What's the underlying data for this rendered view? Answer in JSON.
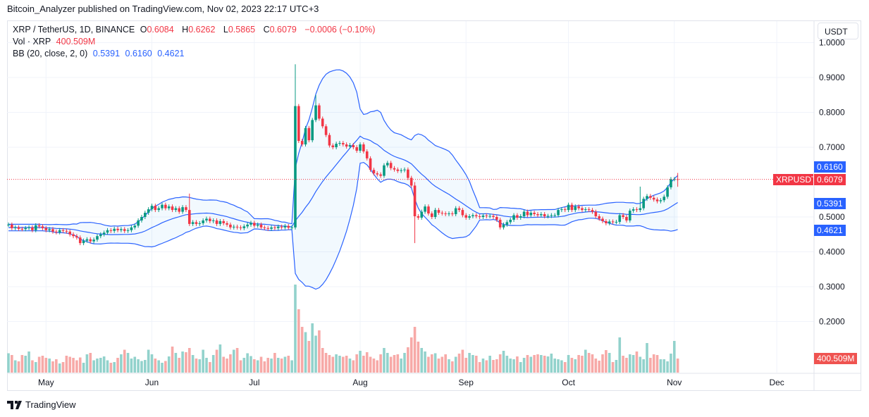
{
  "header": {
    "published": "Bitcoin_Analyzer published on TradingView.com, Nov 02, 2023 22:17 UTC+3"
  },
  "legend": {
    "symbol": "XRP / TetherUS, 1D, BINANCE",
    "o_label": "O",
    "o": "0.6084",
    "h_label": "H",
    "h": "0.6262",
    "l_label": "L",
    "l": "0.5865",
    "c_label": "C",
    "c": "0.6079",
    "change": "−0.0006 (−0.10%)",
    "vol_label": "Vol · XRP",
    "vol": "400.509M",
    "bb_label": "BB (20, close, 2, 0)",
    "bb_basis": "0.5391",
    "bb_upper": "0.6160",
    "bb_lower": "0.4621"
  },
  "price_axis": {
    "currency_button": "USDT",
    "ticks": [
      "1.0000",
      "0.9000",
      "0.8000",
      "0.7000",
      "0.5000",
      "0.4000",
      "0.3000",
      "0.2000"
    ],
    "last_symbol_tag": "XRPUSDT",
    "last_price_tag": "0.6079",
    "bb_upper_tag": "0.6160",
    "bb_basis_tag": "0.5391",
    "bb_lower_tag": "0.4621",
    "volume_tag": "400.509M"
  },
  "footer": {
    "brand": "TradingView"
  },
  "colors": {
    "up": "#089981",
    "down": "#f23645",
    "vol_up": "#92d2cc",
    "vol_down": "#f7a9a7",
    "bb": "#2962ff",
    "bb_fill": "rgba(33,150,243,0.06)",
    "grid": "#f0f3fa"
  },
  "chart_data": {
    "type": "candlestick",
    "symbol": "XRPUSDT",
    "interval": "1D",
    "ylim": [
      0.14,
      1.02
    ],
    "yticks": [
      1.0,
      0.9,
      0.8,
      0.7,
      0.5,
      0.4,
      0.3,
      0.2
    ],
    "xticks": [
      {
        "label": "May",
        "date": "2023-05-01"
      },
      {
        "label": "Jun",
        "date": "2023-06-01"
      },
      {
        "label": "Jul",
        "date": "2023-07-01"
      },
      {
        "label": "Aug",
        "date": "2023-08-01"
      },
      {
        "label": "Sep",
        "date": "2023-09-01"
      },
      {
        "label": "Oct",
        "date": "2023-10-01"
      },
      {
        "label": "Nov",
        "date": "2023-11-01"
      },
      {
        "label": "Dec",
        "date": "2023-12-01"
      }
    ],
    "grid": true,
    "last_price": 0.6079,
    "bollinger": {
      "length": 20,
      "mult": 2,
      "basis": 0.5391,
      "upper": 0.616,
      "lower": 0.4621
    },
    "months": [
      {
        "month": "2023-04",
        "first_day": 20,
        "close": [
          0.478,
          0.468,
          0.47,
          0.466,
          0.465,
          0.468,
          0.47,
          0.462,
          0.476,
          0.473,
          0.468
        ],
        "volume_m": [
          550,
          500,
          350,
          320,
          500,
          480,
          600,
          350,
          300,
          450,
          480
        ]
      },
      {
        "month": "2023-05",
        "first_day": 1,
        "close": [
          0.462,
          0.465,
          0.458,
          0.456,
          0.462,
          0.46,
          0.458,
          0.45,
          0.445,
          0.441,
          0.425,
          0.432,
          0.436,
          0.43,
          0.435,
          0.445,
          0.45,
          0.455,
          0.462,
          0.46,
          0.466,
          0.462,
          0.465,
          0.46,
          0.462,
          0.47,
          0.475,
          0.49,
          0.5,
          0.512,
          0.522
        ],
        "volume_m": [
          420,
          400,
          320,
          380,
          260,
          300,
          480,
          450,
          420,
          350,
          430,
          280,
          520,
          560,
          350,
          400,
          420,
          460,
          350,
          280,
          300,
          420,
          520,
          650,
          560,
          400,
          450,
          380,
          330,
          360,
          650
        ]
      },
      {
        "month": "2023-06",
        "first_day": 1,
        "close": [
          0.532,
          0.52,
          0.525,
          0.535,
          0.525,
          0.53,
          0.52,
          0.525,
          0.515,
          0.528,
          0.52,
          0.48,
          0.485,
          0.48,
          0.482,
          0.49,
          0.495,
          0.488,
          0.49,
          0.48,
          0.488,
          0.482,
          0.478,
          0.47,
          0.472,
          0.47,
          0.468,
          0.473,
          0.478,
          0.483
        ],
        "volume_m": [
          520,
          400,
          350,
          280,
          330,
          460,
          740,
          560,
          420,
          600,
          580,
          700,
          500,
          400,
          380,
          650,
          420,
          300,
          500,
          650,
          800,
          450,
          400,
          520,
          650,
          700,
          350,
          420,
          550,
          470
        ]
      },
      {
        "month": "2023-07",
        "first_day": 1,
        "close": [
          0.475,
          0.478,
          0.47,
          0.468,
          0.466,
          0.47,
          0.468,
          0.472,
          0.47,
          0.474,
          0.469,
          0.47,
          0.818,
          0.718,
          0.708,
          0.755,
          0.72,
          0.778,
          0.82,
          0.782,
          0.76,
          0.735,
          0.705,
          0.7,
          0.71,
          0.712,
          0.708,
          0.702,
          0.706,
          0.7,
          0.69
        ],
        "volume_m": [
          380,
          350,
          450,
          320,
          420,
          400,
          560,
          420,
          400,
          450,
          480,
          350,
          2500,
          1800,
          1300,
          1150,
          900,
          1400,
          1050,
          1200,
          700,
          560,
          500,
          450,
          520,
          480,
          450,
          480,
          400,
          350,
          520
        ]
      },
      {
        "month": "2023-08",
        "first_day": 1,
        "close": [
          0.708,
          0.688,
          0.668,
          0.635,
          0.625,
          0.622,
          0.618,
          0.648,
          0.655,
          0.64,
          0.636,
          0.632,
          0.634,
          0.636,
          0.612,
          0.59,
          0.502,
          0.498,
          0.515,
          0.53,
          0.51,
          0.5,
          0.52,
          0.512,
          0.51,
          0.508,
          0.51,
          0.508,
          0.525,
          0.52,
          0.505
        ],
        "volume_m": [
          620,
          480,
          580,
          450,
          400,
          350,
          520,
          700,
          560,
          450,
          500,
          520,
          400,
          560,
          720,
          1000,
          1300,
          880,
          700,
          600,
          450,
          520,
          550,
          400,
          450,
          520,
          380,
          320,
          450,
          540,
          650
        ]
      },
      {
        "month": "2023-09",
        "first_day": 1,
        "close": [
          0.498,
          0.502,
          0.505,
          0.502,
          0.5,
          0.504,
          0.502,
          0.503,
          0.5,
          0.492,
          0.47,
          0.478,
          0.485,
          0.492,
          0.505,
          0.498,
          0.502,
          0.515,
          0.505,
          0.512,
          0.508,
          0.505,
          0.508,
          0.502,
          0.503,
          0.505,
          0.505,
          0.52,
          0.522,
          0.52
        ],
        "volume_m": [
          420,
          560,
          500,
          480,
          300,
          400,
          350,
          480,
          360,
          380,
          520,
          620,
          480,
          400,
          380,
          460,
          300,
          420,
          500,
          450,
          500,
          520,
          500,
          480,
          460,
          540,
          400,
          380,
          350,
          300
        ]
      },
      {
        "month": "2023-10",
        "first_day": 1,
        "close": [
          0.535,
          0.52,
          0.53,
          0.525,
          0.52,
          0.522,
          0.52,
          0.515,
          0.502,
          0.495,
          0.488,
          0.482,
          0.487,
          0.485,
          0.486,
          0.505,
          0.5,
          0.49,
          0.518,
          0.522,
          0.52,
          0.525,
          0.552,
          0.56,
          0.555,
          0.55,
          0.545,
          0.548,
          0.558,
          0.585,
          0.6084
        ],
        "volume_m": [
          500,
          420,
          380,
          500,
          480,
          650,
          560,
          520,
          400,
          340,
          520,
          640,
          560,
          300,
          360,
          1000,
          480,
          420,
          520,
          500,
          600,
          450,
          380,
          840,
          420,
          520,
          500,
          380,
          380,
          320,
          540
        ]
      },
      {
        "month": "2023-11",
        "first_day": 1,
        "close": [
          0.6084,
          0.6079
        ],
        "volume_m": [
          900,
          400.509
        ]
      }
    ],
    "notable_extremes": [
      {
        "date": "2023-06-12",
        "high": 0.567
      },
      {
        "date": "2023-07-13",
        "high": 0.938,
        "low": 0.465
      },
      {
        "date": "2023-07-19",
        "high": 0.85
      },
      {
        "date": "2023-08-17",
        "high": 0.6,
        "low": 0.425
      },
      {
        "date": "2023-10-22",
        "high": 0.587
      },
      {
        "date": "2023-11-02",
        "open": 0.6084,
        "high": 0.6262,
        "low": 0.5865,
        "close": 0.6079
      }
    ]
  }
}
